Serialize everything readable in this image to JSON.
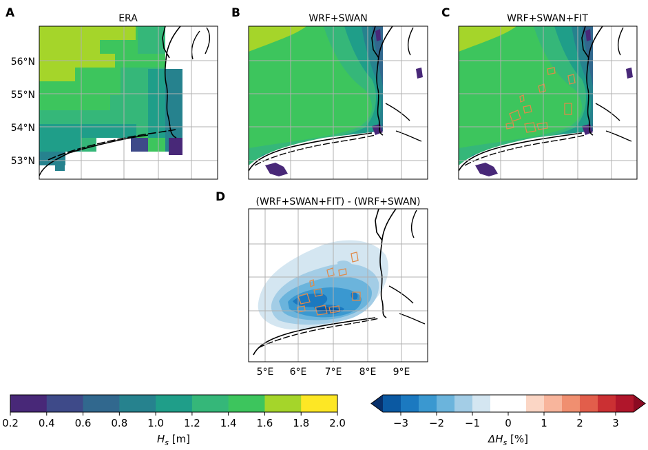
{
  "chart_data": [
    {
      "type": "heatmap",
      "panel": "A",
      "title": "ERA",
      "ylabels": [
        "56°N",
        "55°N",
        "54°N",
        "53°N"
      ],
      "variable": "Hs",
      "unit": "m",
      "value_range": [
        0.2,
        2.0
      ],
      "description_values": {
        "offshore_north": 1.7,
        "central": 1.5,
        "near_coast": 1.2,
        "coastal_min": 0.3
      }
    },
    {
      "type": "heatmap",
      "panel": "B",
      "title": "WRF+SWAN",
      "variable": "Hs",
      "unit": "m",
      "value_range": [
        0.2,
        2.0
      ],
      "description_values": {
        "offshore_north": 1.7,
        "central": 1.5,
        "near_coast": 1.1,
        "coastal_min": 0.3
      }
    },
    {
      "type": "heatmap",
      "panel": "C",
      "title": "WRF+SWAN+FIT",
      "variable": "Hs",
      "unit": "m",
      "value_range": [
        0.2,
        2.0
      ],
      "description_values": {
        "offshore_north": 1.7,
        "central": 1.5,
        "near_coast": 1.1,
        "coastal_min": 0.3
      }
    },
    {
      "type": "heatmap",
      "panel": "D",
      "title": "(WRF+SWAN+FIT) - (WRF+SWAN)",
      "xlabels": [
        "5°E",
        "6°E",
        "7°E",
        "8°E",
        "9°E"
      ],
      "variable": "ΔHs",
      "unit": "%",
      "value_range": [
        -3.5,
        3.5
      ],
      "description_values": {
        "min_change": -3.0,
        "outer_change": -0.25
      }
    }
  ],
  "colorbar_hs": {
    "label": "Hs [m]",
    "label_main": "H",
    "label_sub": "s",
    "label_unit": " [m]",
    "bounds": [
      0.2,
      0.4,
      0.6,
      0.8,
      1.0,
      1.2,
      1.4,
      1.6,
      1.8,
      2.0
    ],
    "ticks": [
      "0.2",
      "0.4",
      "0.6",
      "0.8",
      "1.0",
      "1.2",
      "1.4",
      "1.6",
      "1.8",
      "2.0"
    ],
    "colors": [
      "#482878",
      "#3e4a89",
      "#31688e",
      "#26828e",
      "#1f9e89",
      "#35b779",
      "#3dc55d",
      "#a5d52a",
      "#fde725"
    ]
  },
  "colorbar_diff": {
    "label": "ΔHs [%]",
    "label_main": "ΔH",
    "label_sub": "s",
    "label_unit": " [%]",
    "ticks": [
      "−3",
      "−2",
      "−1",
      "0",
      "1",
      "2",
      "3"
    ],
    "tick_values": [
      -3,
      -2,
      -1,
      0,
      1,
      2,
      3
    ],
    "range": [
      -3.5,
      3.5
    ],
    "colors": [
      "#0b59a2",
      "#1b79c0",
      "#3a98d0",
      "#6bb4dc",
      "#a3cde6",
      "#d4e6f1",
      "#ffffff",
      "#ffffff",
      "#fbd6c5",
      "#f8b59c",
      "#f08f70",
      "#e25e4b",
      "#cb3033",
      "#b0162b"
    ],
    "under_color": "#08306b",
    "over_color": "#8b0a22"
  },
  "panel_letters": [
    "A",
    "B",
    "C",
    "D"
  ]
}
